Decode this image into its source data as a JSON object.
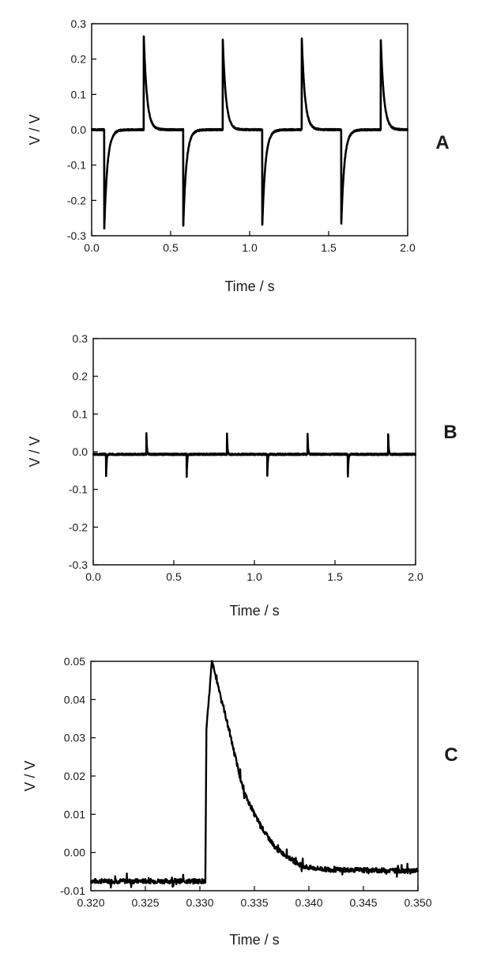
{
  "chart_data": [
    {
      "type": "line",
      "panel": "A",
      "xlabel": "Time / s",
      "ylabel": "V / V",
      "xlim": [
        0.0,
        2.0
      ],
      "ylim": [
        -0.3,
        0.3
      ],
      "x_ticks": [
        "0.0",
        "0.5",
        "1.0",
        "1.5",
        "2.0"
      ],
      "y_ticks": [
        "0.3",
        "0.2",
        "0.1",
        "0.0",
        "-0.1",
        "-0.2",
        "-0.3"
      ],
      "baseline": 0.0,
      "series": [
        {
          "positive_peaks": [
            {
              "x": 0.33,
              "y": 0.265
            },
            {
              "x": 0.83,
              "y": 0.255
            },
            {
              "x": 1.33,
              "y": 0.26
            },
            {
              "x": 1.83,
              "y": 0.255
            }
          ],
          "negative_peaks": [
            {
              "x": 0.08,
              "y": -0.28
            },
            {
              "x": 0.58,
              "y": -0.27
            },
            {
              "x": 1.08,
              "y": -0.27
            },
            {
              "x": 1.58,
              "y": -0.265
            }
          ],
          "decay_time_s": 0.02
        }
      ]
    },
    {
      "type": "line",
      "panel": "B",
      "xlabel": "Time / s",
      "ylabel": "V / V",
      "xlim": [
        0.0,
        2.0
      ],
      "ylim": [
        -0.3,
        0.3
      ],
      "x_ticks": [
        "0.0",
        "0.5",
        "1.0",
        "1.5",
        "2.0"
      ],
      "y_ticks": [
        "0.3",
        "0.2",
        "0.1",
        "0.0",
        "-0.1",
        "-0.2",
        "-0.3"
      ],
      "baseline": -0.007,
      "series": [
        {
          "positive_peaks": [
            {
              "x": 0.33,
              "y": 0.05
            },
            {
              "x": 0.83,
              "y": 0.048
            },
            {
              "x": 1.33,
              "y": 0.049
            },
            {
              "x": 1.83,
              "y": 0.048
            }
          ],
          "negative_peaks": [
            {
              "x": 0.08,
              "y": -0.065
            },
            {
              "x": 0.58,
              "y": -0.065
            },
            {
              "x": 1.08,
              "y": -0.065
            },
            {
              "x": 1.58,
              "y": -0.065
            }
          ],
          "decay_time_s": 0.003
        }
      ]
    },
    {
      "type": "line",
      "panel": "C",
      "xlabel": "Time / s",
      "ylabel": "V / V",
      "xlim": [
        0.32,
        0.35
      ],
      "ylim": [
        -0.01,
        0.05
      ],
      "x_ticks": [
        "0.320",
        "0.325",
        "0.330",
        "0.335",
        "0.340",
        "0.345",
        "0.350"
      ],
      "y_ticks": [
        "0.05",
        "0.04",
        "0.03",
        "0.02",
        "0.01",
        "0.00",
        "-0.01"
      ],
      "series": [
        {
          "points": [
            {
              "x": 0.32,
              "y": -0.0075
            },
            {
              "x": 0.3305,
              "y": -0.0075
            },
            {
              "x": 0.3306,
              "y": 0.032
            },
            {
              "x": 0.3311,
              "y": 0.05
            },
            {
              "x": 0.332,
              "y": 0.04
            },
            {
              "x": 0.333,
              "y": 0.028
            },
            {
              "x": 0.334,
              "y": 0.016
            },
            {
              "x": 0.335,
              "y": 0.01
            },
            {
              "x": 0.336,
              "y": 0.005
            },
            {
              "x": 0.337,
              "y": 0.001
            },
            {
              "x": 0.338,
              "y": -0.001
            },
            {
              "x": 0.339,
              "y": -0.003
            },
            {
              "x": 0.34,
              "y": -0.004
            },
            {
              "x": 0.342,
              "y": -0.0045
            },
            {
              "x": 0.35,
              "y": -0.0048
            }
          ]
        }
      ]
    }
  ]
}
